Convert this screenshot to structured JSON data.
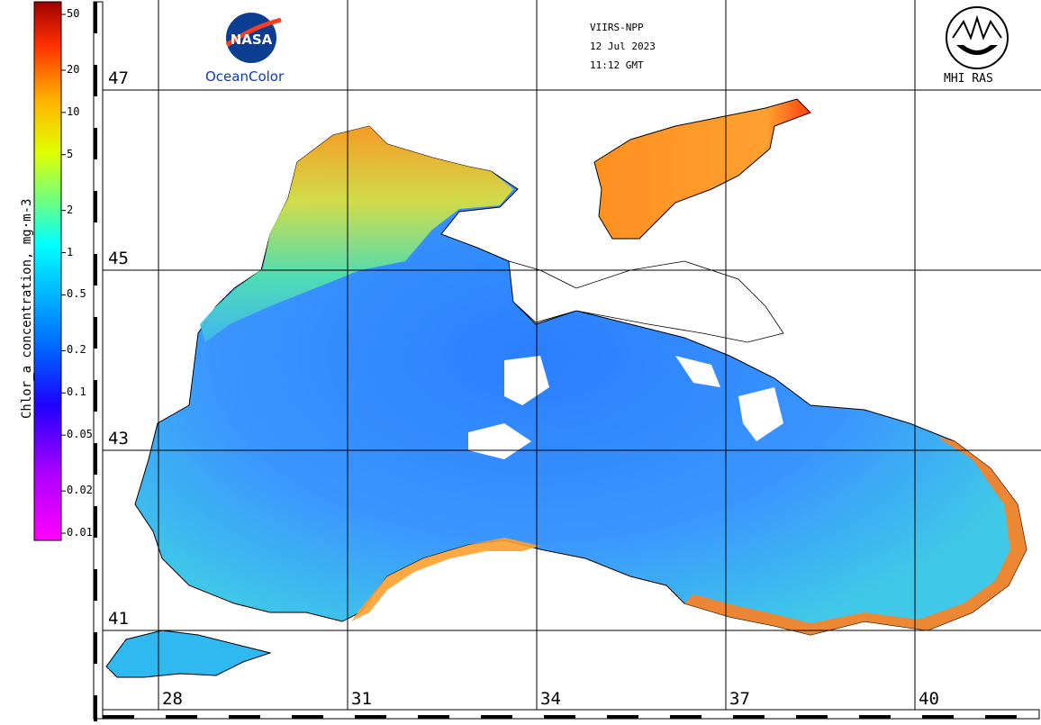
{
  "header": {
    "sensor": "VIIRS-NPP",
    "date": "12 Jul 2023",
    "time": "11:12 GMT"
  },
  "logos": {
    "left_caption": "OceanColor",
    "left_logo_text": "NASA",
    "right_caption": "MHI RAS"
  },
  "colorbar": {
    "title": "Chlor_a concentration, mg·m-3",
    "ticks": [
      "50",
      "20",
      "10",
      "5",
      "2",
      "1",
      "0.5",
      "0.2",
      "0.1",
      "0.05",
      "0.02",
      "0.01"
    ],
    "tick_values": [
      50,
      20,
      10,
      5,
      2,
      1,
      0.5,
      0.2,
      0.1,
      0.05,
      0.02,
      0.01
    ],
    "scale": "log",
    "range": [
      0.01,
      50
    ],
    "colors": [
      "#ff00ff",
      "#8000ff",
      "#0000ff",
      "#0080ff",
      "#00c0ff",
      "#00ffff",
      "#80ff80",
      "#ffff00",
      "#ff8000",
      "#ff0000",
      "#b00000"
    ]
  },
  "map": {
    "latitudes": [
      "47",
      "45",
      "43",
      "41"
    ],
    "longitudes": [
      "28",
      "31",
      "34",
      "37",
      "40"
    ],
    "gridlines": true,
    "colors": {
      "land": "#ffffff",
      "coast": "#000000",
      "deep_water": "#2f8cff",
      "shelf": "#3fd0c8",
      "coastal": "#ff9a1a"
    }
  }
}
